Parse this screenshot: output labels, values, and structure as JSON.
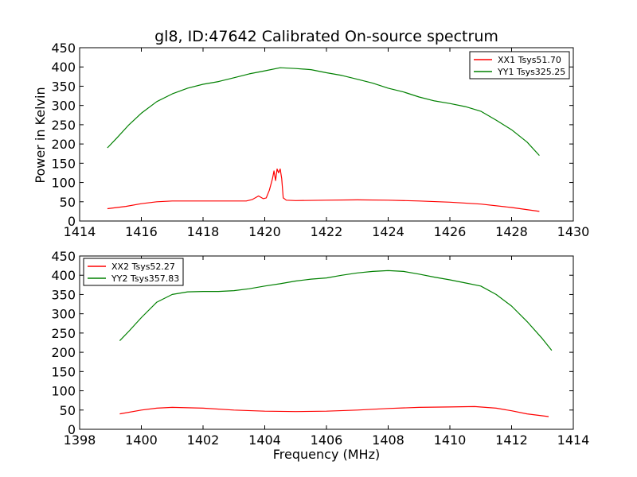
{
  "figure": {
    "title": "gl8, ID:47642 Calibrated On-source spectrum",
    "xlabel": "Frequency (MHz)",
    "ylabel": "Power in Kelvin"
  },
  "colors": {
    "red": "#ff0000",
    "green": "#008000",
    "axis": "#000000"
  },
  "chart_data": [
    {
      "type": "line",
      "title": "gl8, ID:47642 Calibrated On-source spectrum",
      "xlabel": "",
      "ylabel": "Power in Kelvin",
      "xlim": [
        1414,
        1430
      ],
      "ylim": [
        0,
        450
      ],
      "xticks": [
        "1414",
        "1416",
        "1418",
        "1420",
        "1422",
        "1424",
        "1426",
        "1428",
        "1430"
      ],
      "yticks": [
        "0",
        "50",
        "100",
        "150",
        "200",
        "250",
        "300",
        "350",
        "400",
        "450"
      ],
      "legend_position": "top-right",
      "series": [
        {
          "name": "XX1 Tsys51.70",
          "color": "#ff0000",
          "points": [
            [
              1414.9,
              32
            ],
            [
              1415.5,
              38
            ],
            [
              1416,
              45
            ],
            [
              1416.5,
              50
            ],
            [
              1417,
              52
            ],
            [
              1418,
              52
            ],
            [
              1419,
              52
            ],
            [
              1419.4,
              52
            ],
            [
              1419.6,
              56
            ],
            [
              1419.8,
              65
            ],
            [
              1419.95,
              58
            ],
            [
              1420.05,
              60
            ],
            [
              1420.15,
              80
            ],
            [
              1420.25,
              110
            ],
            [
              1420.3,
              130
            ],
            [
              1420.35,
              105
            ],
            [
              1420.4,
              135
            ],
            [
              1420.45,
              125
            ],
            [
              1420.5,
              135
            ],
            [
              1420.55,
              110
            ],
            [
              1420.6,
              60
            ],
            [
              1420.7,
              54
            ],
            [
              1421,
              53
            ],
            [
              1422,
              54
            ],
            [
              1423,
              55
            ],
            [
              1424,
              54
            ],
            [
              1425,
              52
            ],
            [
              1426,
              49
            ],
            [
              1427,
              44
            ],
            [
              1428,
              35
            ],
            [
              1428.9,
              25
            ]
          ]
        },
        {
          "name": "YY1 Tsys325.25",
          "color": "#008000",
          "points": [
            [
              1414.9,
              190
            ],
            [
              1415.2,
              215
            ],
            [
              1415.6,
              250
            ],
            [
              1416,
              280
            ],
            [
              1416.5,
              310
            ],
            [
              1417,
              330
            ],
            [
              1417.5,
              345
            ],
            [
              1418,
              355
            ],
            [
              1418.5,
              362
            ],
            [
              1419,
              372
            ],
            [
              1419.5,
              382
            ],
            [
              1420,
              390
            ],
            [
              1420.5,
              398
            ],
            [
              1421,
              396
            ],
            [
              1421.5,
              393
            ],
            [
              1422,
              385
            ],
            [
              1422.5,
              378
            ],
            [
              1423,
              368
            ],
            [
              1423.5,
              358
            ],
            [
              1424,
              345
            ],
            [
              1424.5,
              335
            ],
            [
              1425,
              322
            ],
            [
              1425.5,
              312
            ],
            [
              1426,
              305
            ],
            [
              1426.5,
              297
            ],
            [
              1427,
              285
            ],
            [
              1427.5,
              262
            ],
            [
              1428,
              237
            ],
            [
              1428.5,
              205
            ],
            [
              1428.9,
              170
            ]
          ]
        }
      ]
    },
    {
      "type": "line",
      "title": "",
      "xlabel": "Frequency (MHz)",
      "ylabel": "",
      "xlim": [
        1398,
        1414
      ],
      "ylim": [
        0,
        450
      ],
      "xticks": [
        "1398",
        "1400",
        "1402",
        "1404",
        "1406",
        "1408",
        "1410",
        "1412",
        "1414"
      ],
      "yticks": [
        "0",
        "50",
        "100",
        "150",
        "200",
        "250",
        "300",
        "350",
        "400",
        "450"
      ],
      "legend_position": "top-left",
      "series": [
        {
          "name": "XX2 Tsys52.27",
          "color": "#ff0000",
          "points": [
            [
              1399.3,
              40
            ],
            [
              1400,
              50
            ],
            [
              1400.5,
              55
            ],
            [
              1401,
              57
            ],
            [
              1402,
              55
            ],
            [
              1403,
              50
            ],
            [
              1404,
              47
            ],
            [
              1405,
              46
            ],
            [
              1406,
              47
            ],
            [
              1407,
              50
            ],
            [
              1408,
              54
            ],
            [
              1409,
              57
            ],
            [
              1410,
              58
            ],
            [
              1410.8,
              59
            ],
            [
              1411.5,
              55
            ],
            [
              1412,
              48
            ],
            [
              1412.5,
              40
            ],
            [
              1413.2,
              33
            ]
          ]
        },
        {
          "name": "YY2 Tsys357.83",
          "color": "#008000",
          "points": [
            [
              1399.3,
              230
            ],
            [
              1399.6,
              255
            ],
            [
              1400,
              290
            ],
            [
              1400.5,
              330
            ],
            [
              1401,
              350
            ],
            [
              1401.5,
              357
            ],
            [
              1402,
              358
            ],
            [
              1402.5,
              358
            ],
            [
              1403,
              360
            ],
            [
              1403.5,
              365
            ],
            [
              1404,
              372
            ],
            [
              1404.5,
              378
            ],
            [
              1405,
              385
            ],
            [
              1405.5,
              390
            ],
            [
              1406,
              393
            ],
            [
              1406.5,
              400
            ],
            [
              1407,
              406
            ],
            [
              1407.5,
              410
            ],
            [
              1408,
              412
            ],
            [
              1408.5,
              410
            ],
            [
              1409,
              403
            ],
            [
              1409.5,
              395
            ],
            [
              1410,
              388
            ],
            [
              1410.5,
              380
            ],
            [
              1411,
              372
            ],
            [
              1411.5,
              350
            ],
            [
              1412,
              320
            ],
            [
              1412.5,
              280
            ],
            [
              1413,
              235
            ],
            [
              1413.3,
              205
            ]
          ]
        }
      ]
    }
  ]
}
